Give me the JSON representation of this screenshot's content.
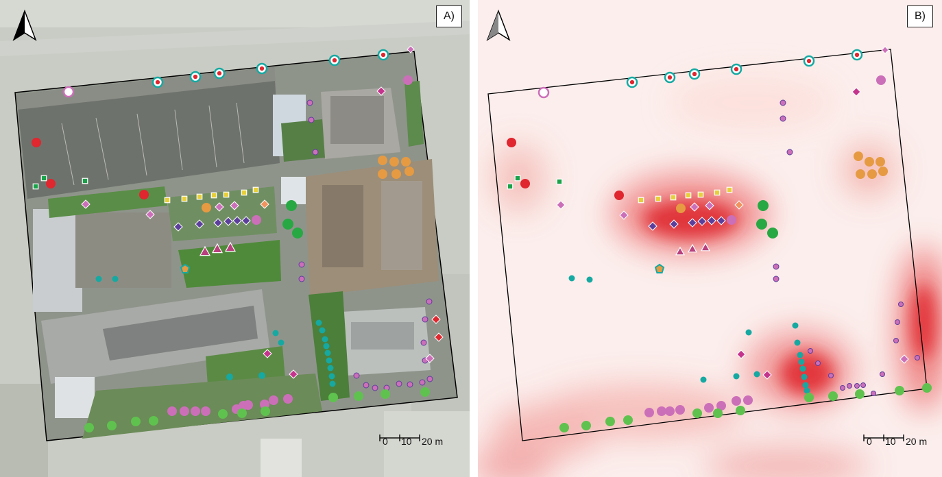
{
  "panels": [
    {
      "id": "a",
      "label": "A)",
      "type": "orthophoto"
    },
    {
      "id": "b",
      "label": "B)",
      "type": "heatmap"
    }
  ],
  "scale_bar": {
    "ticks": [
      "0",
      "10",
      "20 m"
    ]
  },
  "colors": {
    "accent_red": "#e0262e",
    "green_square": "#1aa24a",
    "orchid": "#cc6fb9",
    "violet_diamond": "#5c3f9c",
    "orange": "#e69a42",
    "yellow_square": "#e7cf3b",
    "teal": "#15a9a2",
    "light_green": "#5fc24f",
    "dark_green": "#27a843",
    "magenta": "#c4348d",
    "heatmap_base": "#fbeeec",
    "heatmap_hot": "#e3252c"
  },
  "icons": [
    "north-arrow-icon",
    "north-arrow-icon"
  ]
}
